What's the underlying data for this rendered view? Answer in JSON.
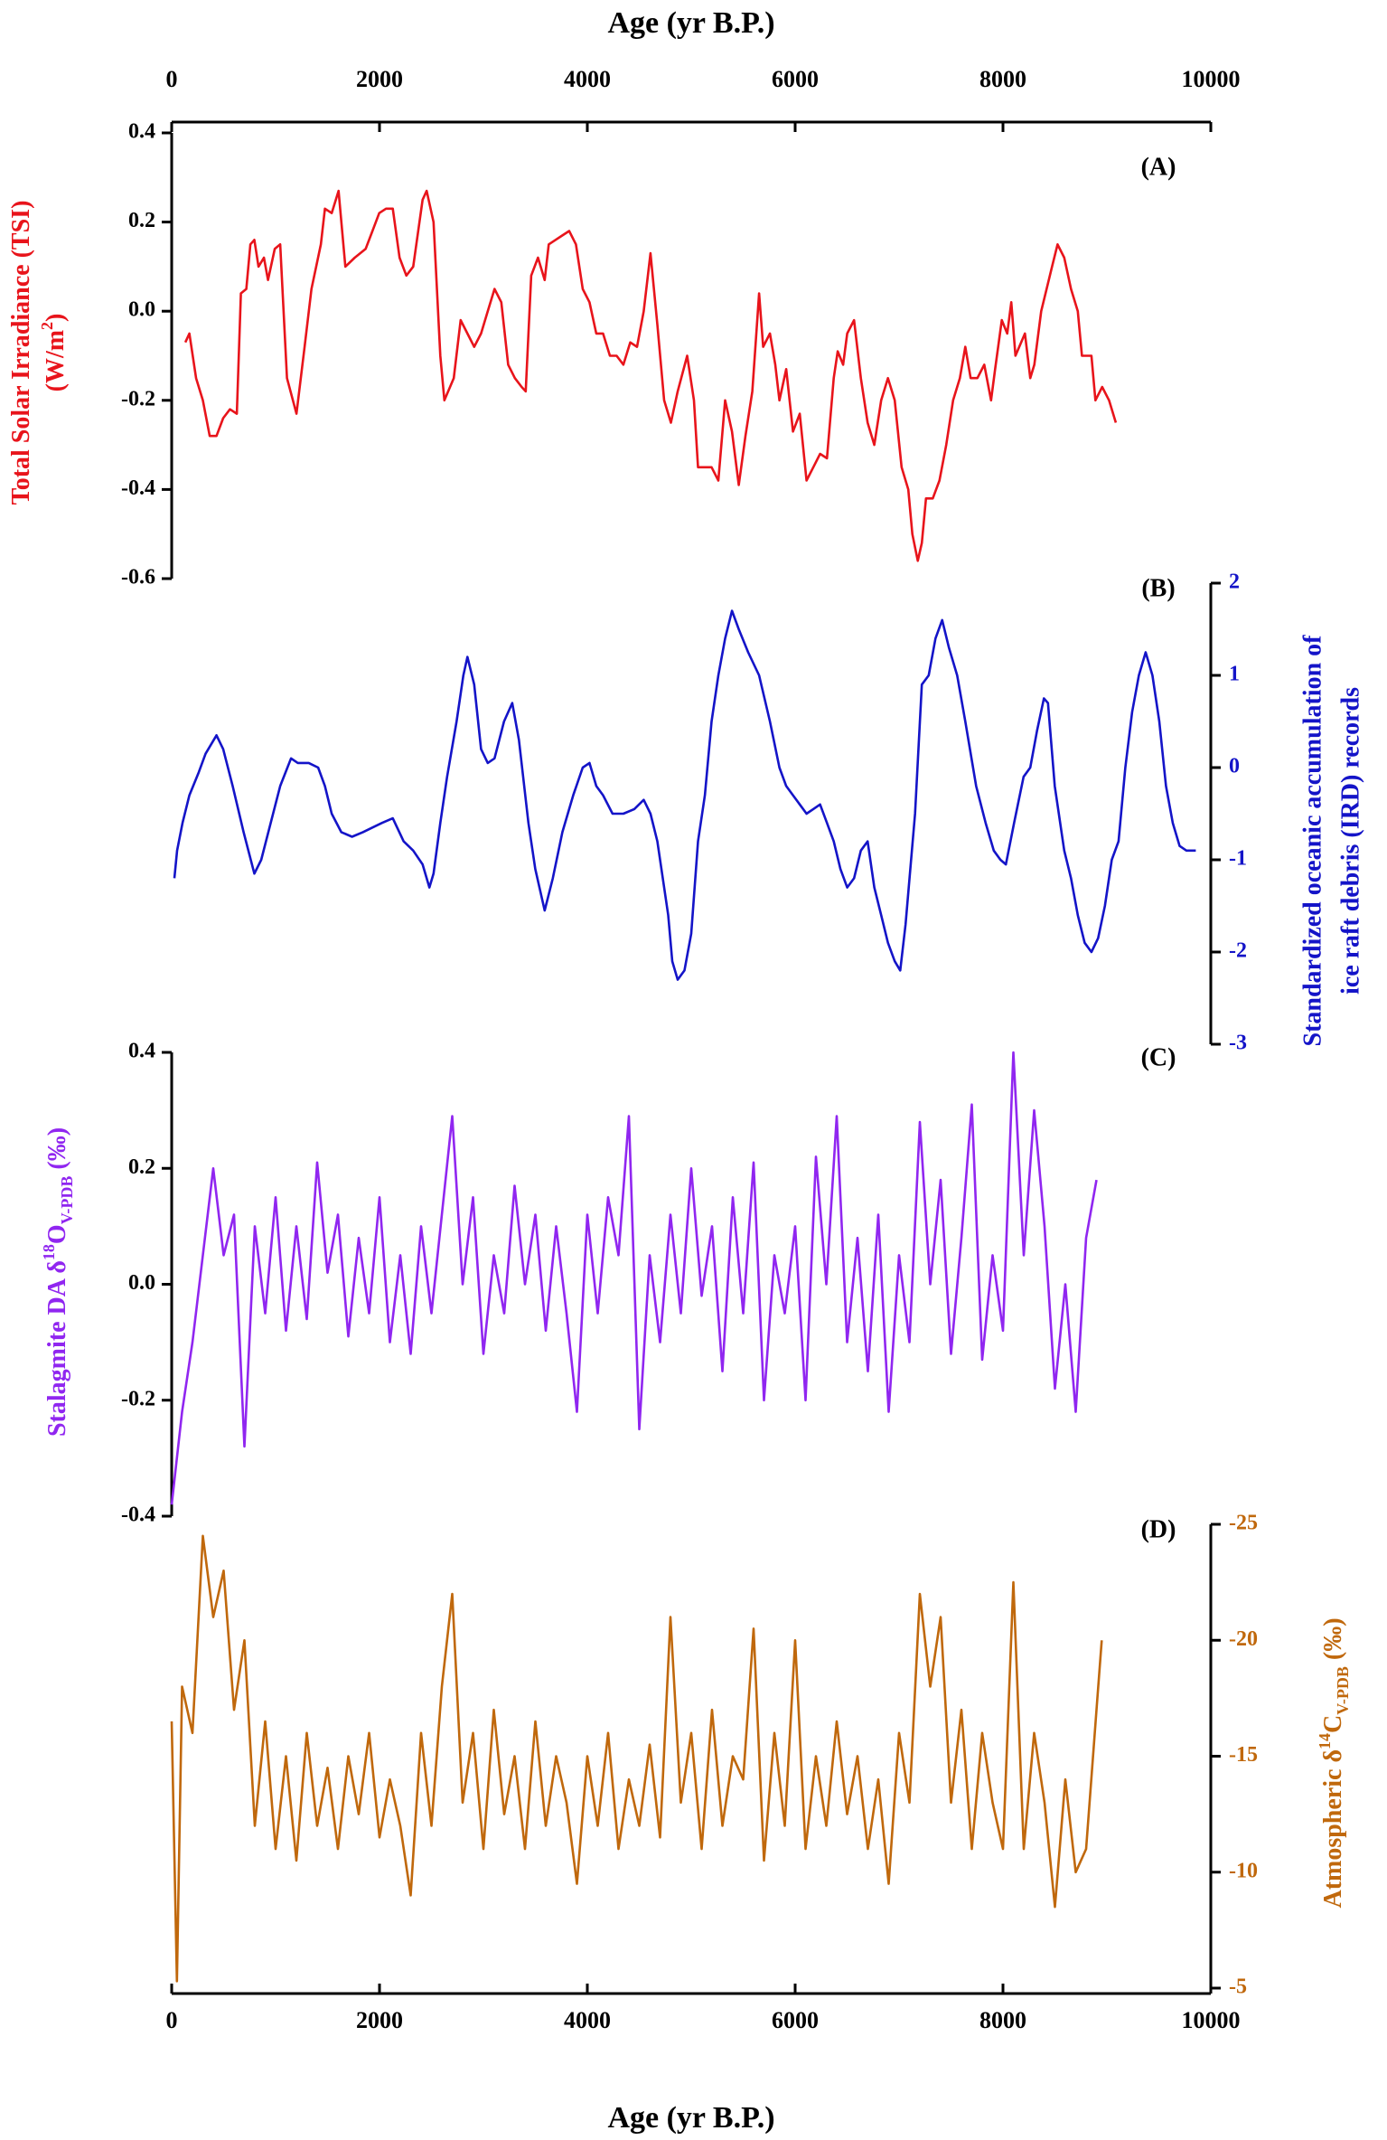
{
  "chart_data": [
    {
      "type": "line",
      "label": "(A)",
      "color": "#e8141b",
      "y_axis_side": "left",
      "x_axis_side": "top",
      "tick_label_color": "#000000",
      "ylabel": [
        "Total Solar Irradiance (TSI)",
        "(W/m",
        "2",
        ")"
      ],
      "xlabel": "Age (yr B.P.)",
      "xlim": [
        0,
        10000
      ],
      "xticks": [
        0,
        2000,
        4000,
        6000,
        8000,
        10000
      ],
      "ylim": [
        -0.6,
        0.4
      ],
      "yticks": [
        0.4,
        0.2,
        {
          "value": 0,
          "label": "0.0"
        },
        -0.2,
        -0.4,
        -0.6
      ],
      "x": [
        131,
        170,
        235,
        300,
        366,
        431,
        496,
        561,
        627,
        666,
        718,
        757,
        796,
        836,
        888,
        927,
        992,
        1044,
        1110,
        1201,
        1279,
        1345,
        1436,
        1475,
        1540,
        1606,
        1671,
        1762,
        1867,
        1932,
        1997,
        2063,
        2128,
        2193,
        2258,
        2324,
        2415,
        2454,
        2520,
        2585,
        2624,
        2715,
        2781,
        2846,
        2911,
        2977,
        3042,
        3107,
        3172,
        3238,
        3303,
        3368,
        3407,
        3460,
        3525,
        3590,
        3629,
        3695,
        3760,
        3825,
        3890,
        3956,
        4021,
        4086,
        4151,
        4217,
        4282,
        4347,
        4413,
        4478,
        4543,
        4608,
        4674,
        4739,
        4804,
        4870,
        4961,
        5026,
        5065,
        5131,
        5196,
        5261,
        5326,
        5392,
        5457,
        5522,
        5588,
        5653,
        5692,
        5757,
        5809,
        5849,
        5914,
        5979,
        6044,
        6110,
        6175,
        6240,
        6306,
        6371,
        6410,
        6462,
        6501,
        6567,
        6632,
        6697,
        6762,
        6828,
        6893,
        6958,
        7024,
        7089,
        7128,
        7180,
        7219,
        7259,
        7324,
        7389,
        7454,
        7520,
        7585,
        7637,
        7689,
        7754,
        7820,
        7885,
        7924,
        7989,
        8041,
        8080,
        8120,
        8211,
        8263,
        8302,
        8368,
        8420,
        8472,
        8525,
        8590,
        8655,
        8720,
        8760,
        8851,
        8890,
        8955,
        9021,
        9086
      ],
      "values": [
        -0.07,
        -0.05,
        -0.15,
        -0.2,
        -0.28,
        -0.28,
        -0.24,
        -0.22,
        -0.23,
        0.04,
        0.05,
        0.15,
        0.16,
        0.1,
        0.12,
        0.07,
        0.14,
        0.15,
        -0.15,
        -0.23,
        -0.08,
        0.05,
        0.15,
        0.23,
        0.22,
        0.27,
        0.1,
        0.12,
        0.14,
        0.18,
        0.22,
        0.23,
        0.23,
        0.12,
        0.08,
        0.1,
        0.25,
        0.27,
        0.2,
        -0.1,
        -0.2,
        -0.15,
        -0.02,
        -0.05,
        -0.08,
        -0.05,
        0.0,
        0.05,
        0.02,
        -0.12,
        -0.15,
        -0.17,
        -0.18,
        0.08,
        0.12,
        0.07,
        0.15,
        0.16,
        0.17,
        0.18,
        0.15,
        0.05,
        0.02,
        -0.05,
        -0.05,
        -0.1,
        -0.1,
        -0.12,
        -0.07,
        -0.08,
        0.0,
        0.13,
        -0.03,
        -0.2,
        -0.25,
        -0.18,
        -0.1,
        -0.2,
        -0.35,
        -0.35,
        -0.35,
        -0.38,
        -0.2,
        -0.27,
        -0.39,
        -0.28,
        -0.18,
        0.04,
        -0.08,
        -0.05,
        -0.12,
        -0.2,
        -0.13,
        -0.27,
        -0.23,
        -0.38,
        -0.35,
        -0.32,
        -0.33,
        -0.15,
        -0.09,
        -0.12,
        -0.05,
        -0.02,
        -0.15,
        -0.25,
        -0.3,
        -0.2,
        -0.15,
        -0.2,
        -0.35,
        -0.4,
        -0.5,
        -0.56,
        -0.52,
        -0.42,
        -0.42,
        -0.38,
        -0.3,
        -0.2,
        -0.15,
        -0.08,
        -0.15,
        -0.15,
        -0.12,
        -0.2,
        -0.13,
        -0.02,
        -0.05,
        0.02,
        -0.1,
        -0.05,
        -0.15,
        -0.12,
        0.0,
        0.05,
        0.1,
        0.15,
        0.12,
        0.05,
        0.0,
        -0.1,
        -0.1,
        -0.2,
        -0.17,
        -0.2,
        -0.25
      ]
    },
    {
      "type": "line",
      "label": "(B)",
      "color": "#1414c8",
      "y_axis_side": "right",
      "tick_label_color": "#1414c8",
      "ylabel": [
        "Standardized oceanic accumulation of",
        "ice raft debris (IRD) records"
      ],
      "xlim": [
        0,
        10000
      ],
      "ylim": [
        -3,
        2
      ],
      "yticks": [
        2,
        1,
        0,
        -1,
        -2,
        -3
      ],
      "x": [
        26,
        52,
        104,
        170,
        261,
        326,
        431,
        496,
        587,
        692,
        796,
        862,
        953,
        1044,
        1149,
        1214,
        1319,
        1410,
        1475,
        1540,
        1632,
        1736,
        1841,
        1932,
        2024,
        2128,
        2232,
        2324,
        2415,
        2480,
        2520,
        2585,
        2650,
        2742,
        2807,
        2846,
        2911,
        2977,
        3042,
        3107,
        3198,
        3277,
        3342,
        3433,
        3499,
        3590,
        3668,
        3760,
        3864,
        3956,
        4021,
        4086,
        4151,
        4243,
        4347,
        4452,
        4543,
        4608,
        4674,
        4739,
        4778,
        4817,
        4870,
        4935,
        5000,
        5065,
        5131,
        5196,
        5261,
        5326,
        5392,
        5457,
        5548,
        5653,
        5757,
        5849,
        5914,
        5979,
        6044,
        6110,
        6175,
        6240,
        6306,
        6371,
        6436,
        6501,
        6567,
        6632,
        6697,
        6762,
        6828,
        6893,
        6958,
        7011,
        7063,
        7154,
        7219,
        7285,
        7350,
        7415,
        7480,
        7559,
        7637,
        7742,
        7833,
        7911,
        7976,
        8028,
        8107,
        8198,
        8263,
        8328,
        8394,
        8433,
        8498,
        8590,
        8655,
        8720,
        8786,
        8851,
        8916,
        8981,
        9047,
        9112,
        9177,
        9243,
        9308,
        9373,
        9438,
        9504,
        9569,
        9634,
        9700,
        9765,
        9856
      ],
      "values": [
        -1.2,
        -0.9,
        -0.6,
        -0.3,
        -0.05,
        0.15,
        0.35,
        0.2,
        -0.2,
        -0.7,
        -1.15,
        -1.0,
        -0.6,
        -0.2,
        0.1,
        0.05,
        0.05,
        0.0,
        -0.2,
        -0.5,
        -0.7,
        -0.75,
        -0.7,
        -0.65,
        -0.6,
        -0.55,
        -0.8,
        -0.9,
        -1.05,
        -1.3,
        -1.15,
        -0.6,
        -0.1,
        0.5,
        1.0,
        1.2,
        0.9,
        0.2,
        0.05,
        0.1,
        0.5,
        0.7,
        0.3,
        -0.6,
        -1.1,
        -1.55,
        -1.2,
        -0.7,
        -0.3,
        0.0,
        0.05,
        -0.2,
        -0.3,
        -0.5,
        -0.5,
        -0.45,
        -0.35,
        -0.5,
        -0.8,
        -1.3,
        -1.6,
        -2.1,
        -2.3,
        -2.2,
        -1.8,
        -0.8,
        -0.3,
        0.5,
        1.0,
        1.4,
        1.7,
        1.5,
        1.25,
        1.0,
        0.5,
        0.0,
        -0.2,
        -0.3,
        -0.4,
        -0.5,
        -0.45,
        -0.4,
        -0.6,
        -0.8,
        -1.1,
        -1.3,
        -1.2,
        -0.9,
        -0.8,
        -1.3,
        -1.6,
        -1.9,
        -2.1,
        -2.2,
        -1.7,
        -0.5,
        0.9,
        1.0,
        1.4,
        1.6,
        1.3,
        1.0,
        0.5,
        -0.2,
        -0.6,
        -0.9,
        -1.0,
        -1.05,
        -0.6,
        -0.1,
        0.0,
        0.4,
        0.75,
        0.7,
        -0.2,
        -0.9,
        -1.2,
        -1.6,
        -1.9,
        -2.0,
        -1.85,
        -1.5,
        -1.0,
        -0.8,
        0.0,
        0.6,
        1.0,
        1.25,
        1.0,
        0.5,
        -0.2,
        -0.6,
        -0.85,
        -0.9,
        -0.9
      ]
    },
    {
      "type": "line",
      "label": "(C)",
      "color": "#9026f0",
      "y_axis_side": "left",
      "tick_label_color": "#000000",
      "ylabel": [
        "Stalagmite DA δ",
        "18",
        "O",
        "V-PDB",
        " (‰)"
      ],
      "xlim": [
        0,
        10000
      ],
      "ylim": [
        -0.4,
        0.4
      ],
      "yticks": [
        0.4,
        0.2,
        {
          "value": 0,
          "label": "0.0"
        },
        -0.2,
        -0.4
      ],
      "x": [
        0,
        100,
        200,
        300,
        400,
        500,
        600,
        700,
        800,
        900,
        1000,
        1100,
        1200,
        1300,
        1400,
        1500,
        1600,
        1700,
        1800,
        1900,
        2000,
        2100,
        2200,
        2300,
        2400,
        2500,
        2600,
        2700,
        2800,
        2900,
        3000,
        3100,
        3200,
        3300,
        3400,
        3500,
        3600,
        3700,
        3800,
        3900,
        4000,
        4100,
        4200,
        4300,
        4400,
        4500,
        4600,
        4700,
        4800,
        4900,
        5000,
        5100,
        5200,
        5300,
        5400,
        5500,
        5600,
        5700,
        5800,
        5900,
        6000,
        6100,
        6200,
        6300,
        6400,
        6500,
        6600,
        6700,
        6800,
        6900,
        7000,
        7100,
        7200,
        7300,
        7400,
        7500,
        7600,
        7700,
        7800,
        7900,
        8000,
        8100,
        8200,
        8300,
        8400,
        8500,
        8600,
        8700,
        8800,
        8900
      ],
      "values": [
        -0.38,
        -0.22,
        -0.1,
        0.05,
        0.2,
        0.05,
        0.12,
        -0.28,
        0.1,
        -0.05,
        0.15,
        -0.08,
        0.1,
        -0.06,
        0.21,
        0.02,
        0.12,
        -0.09,
        0.08,
        -0.05,
        0.15,
        -0.1,
        0.05,
        -0.12,
        0.1,
        -0.05,
        0.12,
        0.29,
        0.0,
        0.15,
        -0.12,
        0.05,
        -0.05,
        0.17,
        0.0,
        0.12,
        -0.08,
        0.1,
        -0.05,
        -0.22,
        0.12,
        -0.05,
        0.15,
        0.05,
        0.29,
        -0.25,
        0.05,
        -0.1,
        0.12,
        -0.05,
        0.2,
        -0.02,
        0.1,
        -0.15,
        0.15,
        -0.05,
        0.21,
        -0.2,
        0.05,
        -0.05,
        0.1,
        -0.2,
        0.22,
        0.0,
        0.29,
        -0.1,
        0.08,
        -0.15,
        0.12,
        -0.22,
        0.05,
        -0.1,
        0.28,
        0.0,
        0.18,
        -0.12,
        0.08,
        0.31,
        -0.13,
        0.05,
        -0.08,
        0.4,
        0.05,
        0.3,
        0.1,
        -0.18,
        0.0,
        -0.22,
        0.08,
        0.18
      ]
    },
    {
      "type": "line",
      "label": "(D)",
      "color": "#c0680c",
      "y_axis_side": "right",
      "x_axis_side": "bottom",
      "tick_label_color": "#c0680c",
      "ylabel": [
        "Atmospheric δ",
        "14",
        "C",
        "V-PDB",
        " (‰)"
      ],
      "xlabel": "Age (yr B.P.)",
      "xlim": [
        0,
        10000
      ],
      "xticks": [
        0,
        2000,
        4000,
        6000,
        8000,
        10000
      ],
      "ylim": [
        -5,
        -25
      ],
      "yticks": [
        -25,
        -20,
        -15,
        -10,
        -5
      ],
      "x": [
        0,
        50,
        100,
        200,
        300,
        400,
        500,
        600,
        700,
        800,
        900,
        1000,
        1100,
        1200,
        1300,
        1400,
        1500,
        1600,
        1700,
        1800,
        1900,
        2000,
        2100,
        2200,
        2300,
        2400,
        2500,
        2600,
        2700,
        2800,
        2900,
        3000,
        3100,
        3200,
        3300,
        3400,
        3500,
        3600,
        3700,
        3800,
        3900,
        4000,
        4100,
        4200,
        4300,
        4400,
        4500,
        4600,
        4700,
        4800,
        4900,
        5000,
        5100,
        5200,
        5300,
        5400,
        5500,
        5600,
        5700,
        5800,
        5900,
        6000,
        6100,
        6200,
        6300,
        6400,
        6500,
        6600,
        6700,
        6800,
        6900,
        7000,
        7100,
        7200,
        7300,
        7400,
        7500,
        7600,
        7700,
        7800,
        7900,
        8000,
        8100,
        8200,
        8300,
        8400,
        8500,
        8600,
        8700,
        8800,
        8900,
        8950
      ],
      "values": [
        -16.5,
        -5.3,
        -18,
        -16,
        -24.5,
        -21,
        -23,
        -17,
        -20,
        -12,
        -16.5,
        -11,
        -15,
        -10.5,
        -16,
        -12,
        -14.5,
        -11,
        -15,
        -12.5,
        -16,
        -11.5,
        -14,
        -12,
        -9,
        -16,
        -12,
        -18,
        -22,
        -13,
        -16,
        -11,
        -17,
        -12.5,
        -15,
        -11,
        -16.5,
        -12,
        -15,
        -13,
        -9.5,
        -15,
        -12,
        -16,
        -11,
        -14,
        -12,
        -15.5,
        -11.5,
        -21,
        -13,
        -16,
        -11,
        -17,
        -12,
        -15,
        -14,
        -20.5,
        -10.5,
        -16,
        -12,
        -20,
        -11,
        -15,
        -12,
        -16.5,
        -12.5,
        -15,
        -11,
        -14,
        -9.5,
        -16,
        -13,
        -22,
        -18,
        -21,
        -13,
        -17,
        -11,
        -16,
        -13,
        -11,
        -22.5,
        -11,
        -16,
        -13,
        -8.5,
        -14,
        -10,
        -11,
        -17,
        -20
      ]
    }
  ]
}
